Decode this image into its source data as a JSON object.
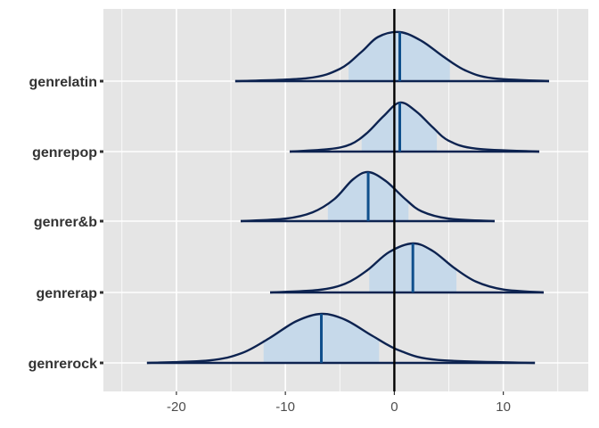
{
  "chart_data": {
    "type": "area",
    "subtype": "ridgeline-posterior-densities",
    "title": "",
    "xlabel": "",
    "ylabel": "",
    "xlim": [
      -26.7,
      17.8
    ],
    "x_ticks": [
      -20,
      -10,
      0,
      10
    ],
    "x_tick_labels": [
      "-20",
      "-10",
      "0",
      "10"
    ],
    "reference_line_x": 0,
    "grid": true,
    "legend": "none",
    "categories": [
      "genrelatin",
      "genrepop",
      "genrer&b",
      "genrerap",
      "genrerock"
    ],
    "series": [
      {
        "name": "genrelatin",
        "median": 0.5,
        "interval_50": [
          -4.2,
          5.1
        ],
        "range": [
          -14.6,
          14.2
        ],
        "density": {
          "x": [
            -14.6,
            -8.0,
            -5.0,
            -3.0,
            -1.5,
            0.5,
            2.5,
            4.5,
            6.5,
            9.0,
            14.2
          ],
          "y": [
            0.0,
            0.06,
            0.25,
            0.6,
            0.9,
            1.0,
            0.82,
            0.5,
            0.22,
            0.06,
            0.0
          ]
        }
      },
      {
        "name": "genrepop",
        "median": 0.5,
        "interval_50": [
          -3.0,
          3.9
        ],
        "range": [
          -9.6,
          13.3
        ],
        "density": {
          "x": [
            -9.6,
            -6.0,
            -4.0,
            -2.5,
            -1.0,
            0.5,
            2.0,
            3.5,
            5.0,
            7.5,
            13.3
          ],
          "y": [
            0.0,
            0.05,
            0.15,
            0.38,
            0.72,
            1.0,
            0.82,
            0.5,
            0.22,
            0.06,
            0.0
          ]
        }
      },
      {
        "name": "genrer&b",
        "median": -2.4,
        "interval_50": [
          -6.1,
          1.3
        ],
        "range": [
          -14.1,
          9.2
        ],
        "density": {
          "x": [
            -14.1,
            -10.0,
            -7.5,
            -5.5,
            -3.8,
            -2.4,
            -0.8,
            1.0,
            2.5,
            5.0,
            9.2
          ],
          "y": [
            0.0,
            0.05,
            0.18,
            0.45,
            0.85,
            1.0,
            0.82,
            0.45,
            0.2,
            0.05,
            0.0
          ]
        }
      },
      {
        "name": "genrerap",
        "median": 1.7,
        "interval_50": [
          -2.3,
          5.7
        ],
        "range": [
          -11.4,
          13.7
        ],
        "density": {
          "x": [
            -11.4,
            -7.0,
            -4.5,
            -2.5,
            -0.5,
            1.7,
            3.5,
            5.5,
            7.5,
            10.0,
            13.7
          ],
          "y": [
            0.0,
            0.05,
            0.18,
            0.45,
            0.82,
            1.0,
            0.85,
            0.5,
            0.22,
            0.06,
            0.0
          ]
        }
      },
      {
        "name": "genrerock",
        "median": -6.7,
        "interval_50": [
          -12.0,
          -1.4
        ],
        "range": [
          -22.7,
          12.9
        ],
        "density": {
          "x": [
            -22.7,
            -17.0,
            -14.0,
            -11.5,
            -9.0,
            -6.7,
            -4.5,
            -2.0,
            0.5,
            4.0,
            12.9
          ],
          "y": [
            0.0,
            0.05,
            0.2,
            0.5,
            0.85,
            1.0,
            0.88,
            0.55,
            0.25,
            0.06,
            0.0
          ]
        }
      }
    ],
    "colors": {
      "panel": "#e5e5e5",
      "grid": "#ffffff",
      "outline": "#0d2350",
      "median": "#0f4f8c",
      "interval_fill": "#c6d9ea",
      "reference": "#000000"
    }
  }
}
